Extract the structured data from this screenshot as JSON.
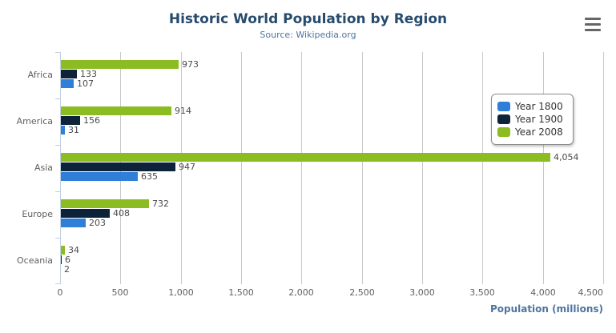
{
  "chart_data": {
    "type": "bar",
    "orientation": "horizontal",
    "title": "Historic World Population by Region",
    "subtitle": "Source: Wikipedia.org",
    "categories": [
      "Africa",
      "America",
      "Asia",
      "Europe",
      "Oceania"
    ],
    "series": [
      {
        "name": "Year 1800",
        "color": "#2f7ed8",
        "values": [
          107,
          31,
          635,
          203,
          2
        ]
      },
      {
        "name": "Year 1900",
        "color": "#0d233a",
        "values": [
          133,
          156,
          947,
          408,
          6
        ]
      },
      {
        "name": "Year 2008",
        "color": "#8bbc21",
        "values": [
          973,
          914,
          4054,
          732,
          34
        ]
      }
    ],
    "bar_order_top_to_bottom": [
      "Year 2008",
      "Year 1900",
      "Year 1800"
    ],
    "data_labels_visible": true,
    "xlabel": "Population (millions)",
    "ylabel": "",
    "xlim": [
      0,
      4500
    ],
    "x_ticks": [
      "0",
      "500",
      "1,000",
      "1,500",
      "2,000",
      "2,500",
      "3,000",
      "3,500",
      "4,000",
      "4,500"
    ],
    "grid": true,
    "legend_position": "right-inside",
    "legend_entries": [
      "Year 1800",
      "Year 1900",
      "Year 2008"
    ]
  },
  "icons": {
    "export_menu": "hamburger-icon"
  },
  "colors": {
    "title": "#274b6d",
    "subtitle": "#4d759e",
    "axis_title": "#4d759e",
    "axis_labels": "#606060",
    "data_labels": "#4a4a4a",
    "gridline": "#c9c9c9",
    "axis_line": "#c0d0e0"
  }
}
